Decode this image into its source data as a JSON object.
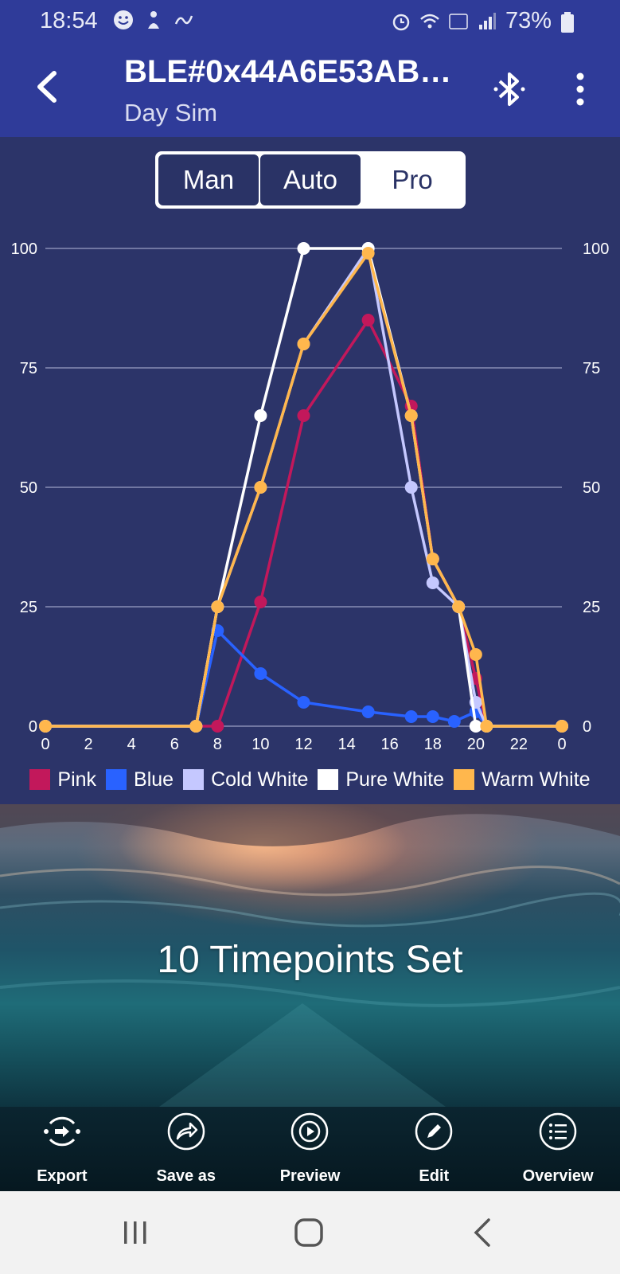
{
  "status_bar": {
    "time": "18:54",
    "battery": "73%"
  },
  "app_bar": {
    "title": "BLE#0x44A6E53AB…",
    "subtitle": "Day Sim"
  },
  "mode_tabs": [
    {
      "label": "Man",
      "active": false
    },
    {
      "label": "Auto",
      "active": false
    },
    {
      "label": "Pro",
      "active": true
    }
  ],
  "chart_data": {
    "type": "line",
    "x_ticks": [
      "0",
      "2",
      "4",
      "6",
      "8",
      "10",
      "12",
      "14",
      "16",
      "18",
      "20",
      "22",
      "0"
    ],
    "y_ticks": [
      0,
      25,
      50,
      75,
      100
    ],
    "xlim": [
      0,
      24
    ],
    "ylim": [
      0,
      100
    ],
    "grid": true,
    "legend_position": "bottom",
    "series": [
      {
        "name": "Pink",
        "color": "#c2185b",
        "points": [
          [
            0,
            0
          ],
          [
            7,
            0
          ],
          [
            8,
            0
          ],
          [
            10,
            26
          ],
          [
            12,
            65
          ],
          [
            15,
            85
          ],
          [
            17,
            67
          ],
          [
            18,
            35
          ],
          [
            19.2,
            25
          ],
          [
            20,
            10
          ],
          [
            20.5,
            0
          ],
          [
            24,
            0
          ]
        ]
      },
      {
        "name": "Blue",
        "color": "#2962ff",
        "points": [
          [
            0,
            0
          ],
          [
            7,
            0
          ],
          [
            8,
            20
          ],
          [
            10,
            11
          ],
          [
            12,
            5
          ],
          [
            15,
            3
          ],
          [
            17,
            2
          ],
          [
            18,
            2
          ],
          [
            19,
            1
          ],
          [
            20,
            3
          ],
          [
            20.5,
            0
          ],
          [
            24,
            0
          ]
        ]
      },
      {
        "name": "Cold White",
        "color": "#c5c8ff",
        "points": [
          [
            0,
            0
          ],
          [
            7,
            0
          ],
          [
            8,
            25
          ],
          [
            10,
            50
          ],
          [
            12,
            80
          ],
          [
            15,
            100
          ],
          [
            17,
            50
          ],
          [
            18,
            30
          ],
          [
            19.2,
            25
          ],
          [
            20,
            5
          ],
          [
            20.5,
            0
          ],
          [
            24,
            0
          ]
        ]
      },
      {
        "name": "Pure White",
        "color": "#ffffff",
        "points": [
          [
            0,
            0
          ],
          [
            7,
            0
          ],
          [
            8,
            25
          ],
          [
            10,
            65
          ],
          [
            12,
            100
          ],
          [
            15,
            100
          ],
          [
            17,
            65
          ],
          [
            18,
            35
          ],
          [
            19.2,
            25
          ],
          [
            20,
            0
          ],
          [
            20.5,
            0
          ],
          [
            24,
            0
          ]
        ]
      },
      {
        "name": "Warm White",
        "color": "#ffb74d",
        "points": [
          [
            0,
            0
          ],
          [
            7,
            0
          ],
          [
            8,
            25
          ],
          [
            10,
            50
          ],
          [
            12,
            80
          ],
          [
            15,
            99
          ],
          [
            17,
            65
          ],
          [
            18,
            35
          ],
          [
            19.2,
            25
          ],
          [
            20,
            15
          ],
          [
            20.5,
            0
          ],
          [
            24,
            0
          ]
        ]
      }
    ]
  },
  "banner": {
    "text": "10 Timepoints Set"
  },
  "toolbar": [
    {
      "label": "Export",
      "icon": "export-icon"
    },
    {
      "label": "Save as",
      "icon": "share-icon"
    },
    {
      "label": "Preview",
      "icon": "play-icon"
    },
    {
      "label": "Edit",
      "icon": "pencil-icon"
    },
    {
      "label": "Overview",
      "icon": "list-icon"
    }
  ]
}
